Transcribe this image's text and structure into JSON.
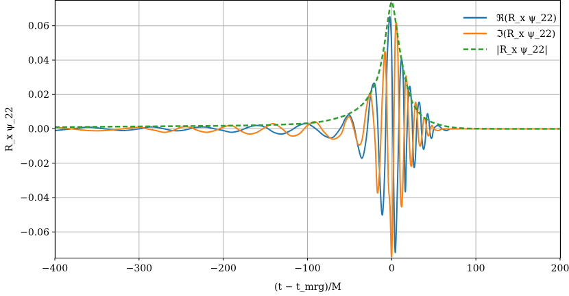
{
  "chart_data": {
    "type": "line",
    "title": "",
    "xlabel": "(t − t_mrg)/M",
    "ylabel": "R_x ψ_22",
    "xlim": [
      -400,
      200
    ],
    "ylim": [
      -0.075,
      0.075
    ],
    "grid": true,
    "legend_position": "top-right",
    "x_ticks": [
      -400,
      -300,
      -200,
      -100,
      0,
      100,
      200
    ],
    "x_tick_labels": [
      "−400",
      "−300",
      "−200",
      "−100",
      "0",
      "100",
      "200"
    ],
    "y_ticks": [
      -0.06,
      -0.04,
      -0.02,
      0.0,
      0.02,
      0.04,
      0.06
    ],
    "y_tick_labels": [
      "−0.06",
      "−0.04",
      "−0.02",
      "0.00",
      "0.02",
      "0.04",
      "0.06"
    ],
    "series": [
      {
        "name": "ℜ(R_x ψ_22)",
        "color": "#1f77b4",
        "dash": "solid",
        "x": [
          -400,
          -380,
          -360,
          -340,
          -320,
          -300,
          -290,
          -280,
          -270,
          -260,
          -250,
          -240,
          -230,
          -220,
          -210,
          -200,
          -190,
          -180,
          -170,
          -160,
          -150,
          -140,
          -130,
          -120,
          -110,
          -100,
          -90,
          -80,
          -70,
          -60,
          -55,
          -50,
          -45,
          -40,
          -35,
          -30,
          -25,
          -20,
          -17,
          -14,
          -11,
          -8,
          -6,
          -4,
          -2,
          0,
          2,
          4,
          6,
          8,
          10,
          12,
          14,
          16,
          18,
          20,
          22,
          24,
          26,
          28,
          30,
          32,
          34,
          36,
          38,
          40,
          42,
          44,
          46,
          48,
          50,
          55,
          60,
          65,
          70,
          80,
          100,
          150,
          200
        ],
        "y": [
          -0.001,
          0.0,
          0.001,
          0.0,
          -0.001,
          0.0,
          0.001,
          0.001,
          0.0,
          -0.001,
          -0.001,
          0.0,
          0.001,
          0.001,
          0.0,
          -0.001,
          -0.002,
          -0.001,
          0.001,
          0.002,
          0.001,
          -0.002,
          -0.003,
          -0.001,
          0.002,
          0.003,
          0.0,
          -0.004,
          -0.005,
          0.001,
          0.006,
          0.008,
          0.002,
          -0.01,
          -0.017,
          -0.005,
          0.02,
          0.026,
          0.008,
          -0.03,
          -0.05,
          -0.02,
          0.03,
          0.055,
          0.065,
          0.045,
          -0.02,
          -0.071,
          -0.05,
          -0.01,
          0.03,
          0.04,
          0.025,
          -0.036,
          -0.005,
          0.02,
          0.024,
          0.01,
          -0.02,
          -0.018,
          0.005,
          0.015,
          0.012,
          -0.006,
          -0.012,
          -0.006,
          0.008,
          0.006,
          -0.004,
          -0.005,
          0.0,
          0.002,
          0.0,
          -0.001,
          0.0,
          0.0,
          0.0,
          0.0,
          0.0
        ]
      },
      {
        "name": "ℑ(R_x ψ_22)",
        "color": "#ff7f0e",
        "dash": "solid",
        "x": [
          -400,
          -380,
          -360,
          -340,
          -320,
          -300,
          -290,
          -280,
          -270,
          -260,
          -250,
          -240,
          -230,
          -220,
          -210,
          -200,
          -190,
          -180,
          -170,
          -160,
          -150,
          -140,
          -130,
          -120,
          -110,
          -100,
          -90,
          -80,
          -70,
          -60,
          -55,
          -50,
          -45,
          -40,
          -35,
          -30,
          -25,
          -20,
          -17,
          -14,
          -11,
          -8,
          -6,
          -4,
          -2,
          0,
          2,
          4,
          6,
          8,
          10,
          12,
          14,
          16,
          18,
          20,
          22,
          24,
          26,
          28,
          30,
          32,
          34,
          36,
          38,
          40,
          42,
          44,
          46,
          48,
          50,
          55,
          60,
          65,
          70,
          80,
          100,
          150,
          200
        ],
        "y": [
          0.001,
          0.0,
          -0.001,
          -0.001,
          0.0,
          0.001,
          0.0,
          -0.001,
          -0.002,
          -0.001,
          0.001,
          0.001,
          -0.001,
          -0.002,
          -0.001,
          0.001,
          0.002,
          -0.001,
          -0.003,
          -0.002,
          0.001,
          0.003,
          0.0,
          -0.004,
          -0.003,
          0.002,
          0.004,
          -0.002,
          -0.006,
          -0.003,
          0.004,
          0.007,
          0.0,
          -0.009,
          -0.006,
          0.012,
          0.02,
          -0.005,
          -0.037,
          -0.02,
          0.02,
          0.045,
          0.02,
          -0.03,
          -0.045,
          -0.074,
          -0.02,
          0.05,
          0.06,
          0.03,
          -0.03,
          -0.045,
          -0.02,
          0.025,
          0.028,
          0.005,
          -0.018,
          -0.02,
          0.0,
          0.015,
          0.01,
          -0.006,
          -0.01,
          -0.004,
          0.006,
          0.005,
          -0.002,
          -0.004,
          0.0,
          0.002,
          0.0,
          -0.001,
          0.0,
          0.0,
          0.0,
          0.0,
          0.0,
          0.0,
          0.0
        ]
      },
      {
        "name": "|R_x ψ_22|",
        "color": "#2ca02c",
        "dash": "dashed",
        "x": [
          -400,
          -350,
          -300,
          -250,
          -200,
          -150,
          -120,
          -100,
          -80,
          -60,
          -50,
          -40,
          -30,
          -20,
          -15,
          -10,
          -6,
          -3,
          -1,
          0,
          1,
          3,
          6,
          10,
          15,
          20,
          25,
          30,
          35,
          40,
          45,
          50,
          60,
          70,
          80,
          100,
          150,
          200
        ],
        "y": [
          0.001,
          0.0012,
          0.0014,
          0.0016,
          0.0018,
          0.0022,
          0.0027,
          0.0033,
          0.0045,
          0.007,
          0.009,
          0.012,
          0.017,
          0.026,
          0.033,
          0.045,
          0.058,
          0.068,
          0.073,
          0.074,
          0.073,
          0.068,
          0.058,
          0.045,
          0.032,
          0.022,
          0.015,
          0.011,
          0.008,
          0.006,
          0.0045,
          0.0035,
          0.002,
          0.001,
          0.0005,
          0.0001,
          0.0,
          0.0
        ]
      }
    ]
  }
}
